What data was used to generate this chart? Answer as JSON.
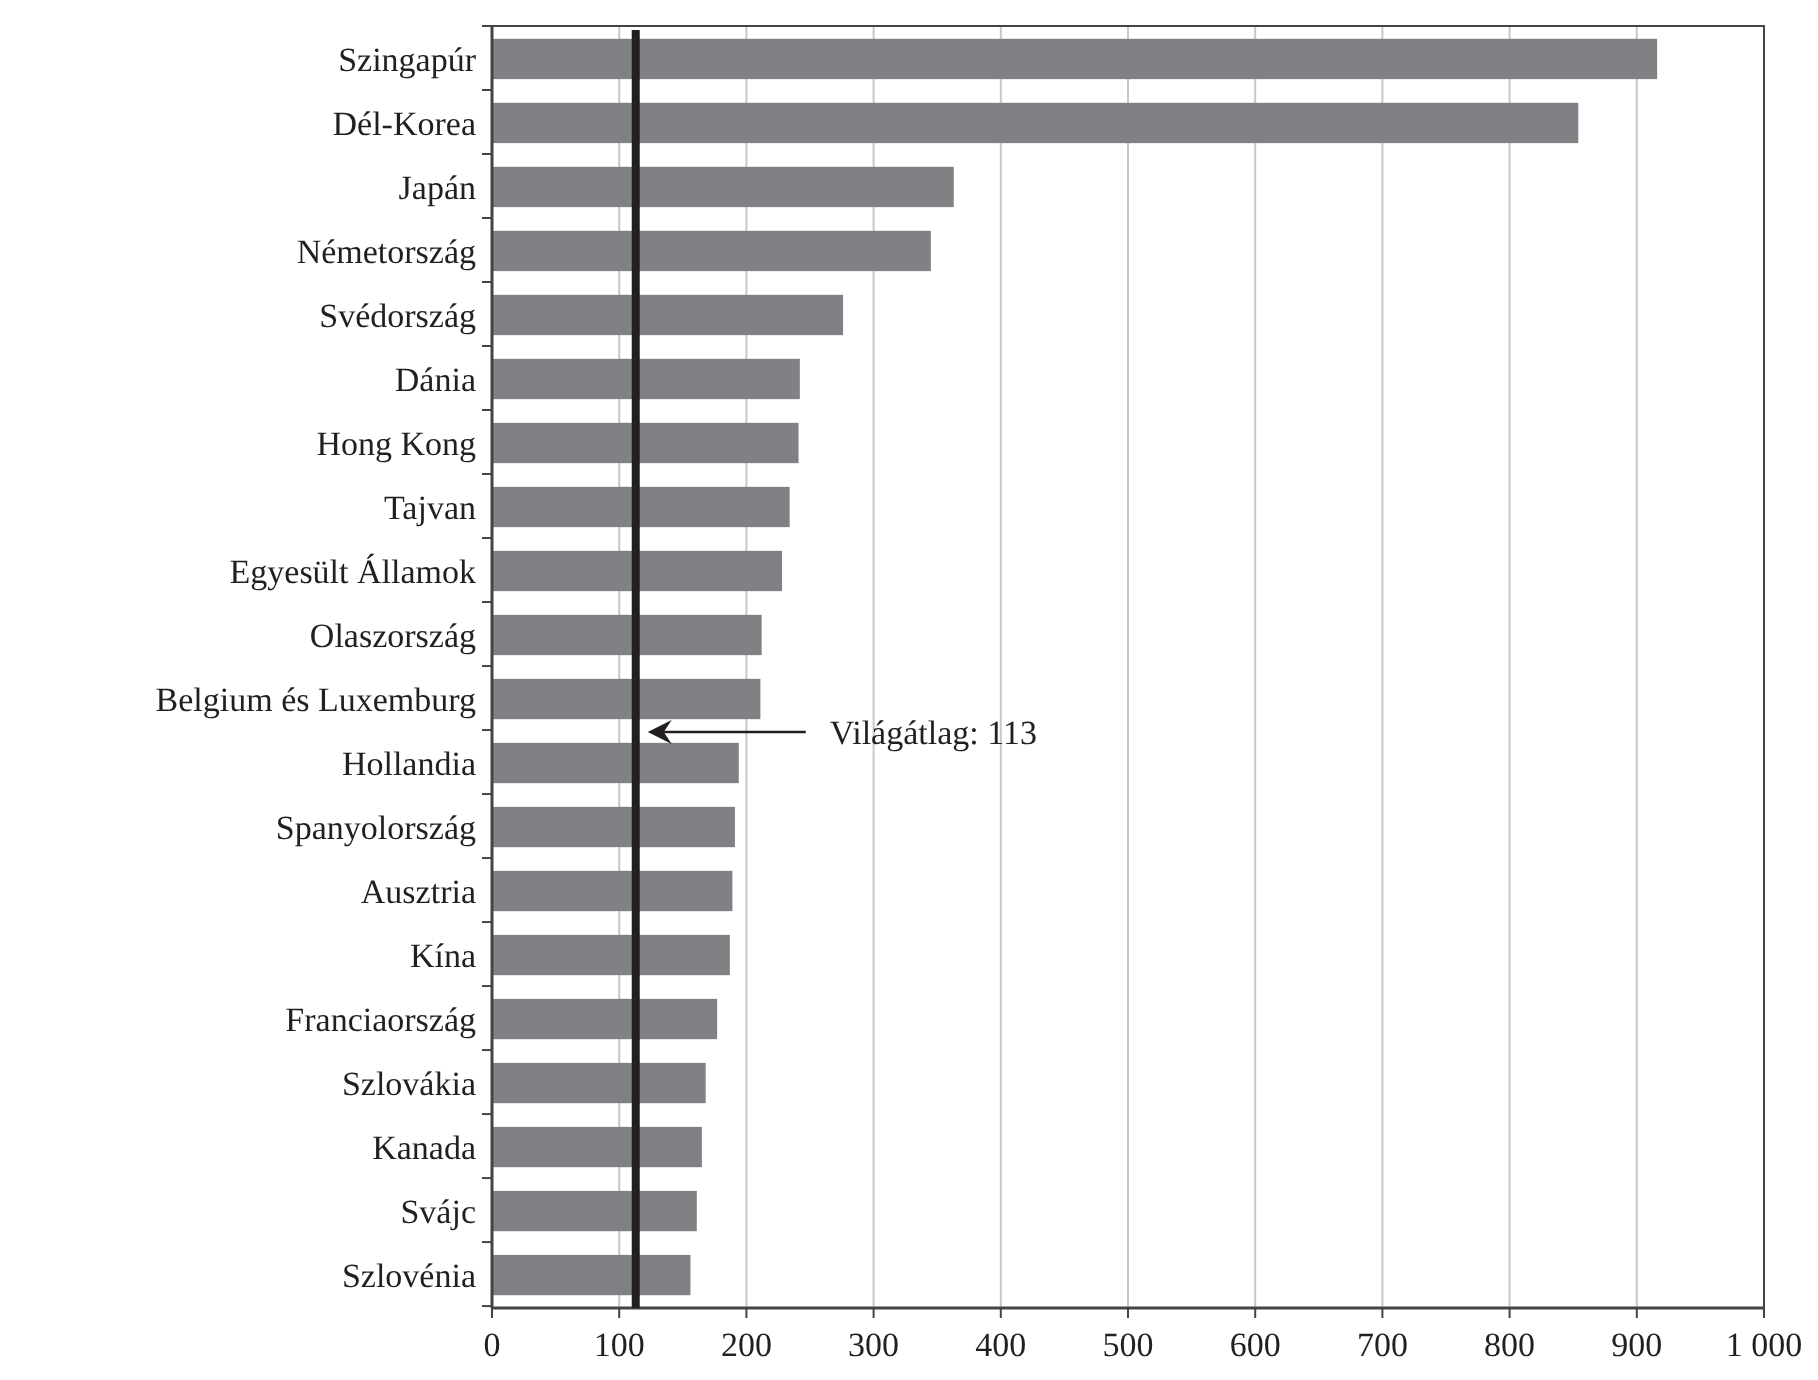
{
  "chart_data": {
    "type": "bar",
    "orientation": "horizontal",
    "categories": [
      "Szingapúr",
      "Dél-Korea",
      "Japán",
      "Németország",
      "Svédország",
      "Dánia",
      "Hong Kong",
      "Tajvan",
      "Egyesült Államok",
      "Olaszország",
      "Belgium és Luxemburg",
      "Hollandia",
      "Spanyolország",
      "Ausztria",
      "Kína",
      "Franciaország",
      "Szlovákia",
      "Kanada",
      "Svájc",
      "Szlovénia"
    ],
    "values": [
      916,
      854,
      363,
      345,
      276,
      242,
      241,
      234,
      228,
      212,
      211,
      194,
      191,
      189,
      187,
      177,
      168,
      165,
      161,
      156
    ],
    "color": "#808184",
    "xlim": [
      0,
      1000
    ],
    "xticks": [
      0,
      100,
      200,
      300,
      400,
      500,
      600,
      700,
      800,
      900,
      {
        "value": 1000,
        "label": "1 000"
      }
    ],
    "grid": "x",
    "ref_lines": [
      {
        "axis": "x",
        "value": 113,
        "label": "Világátlag: 113",
        "color": "#231f20"
      }
    ]
  }
}
